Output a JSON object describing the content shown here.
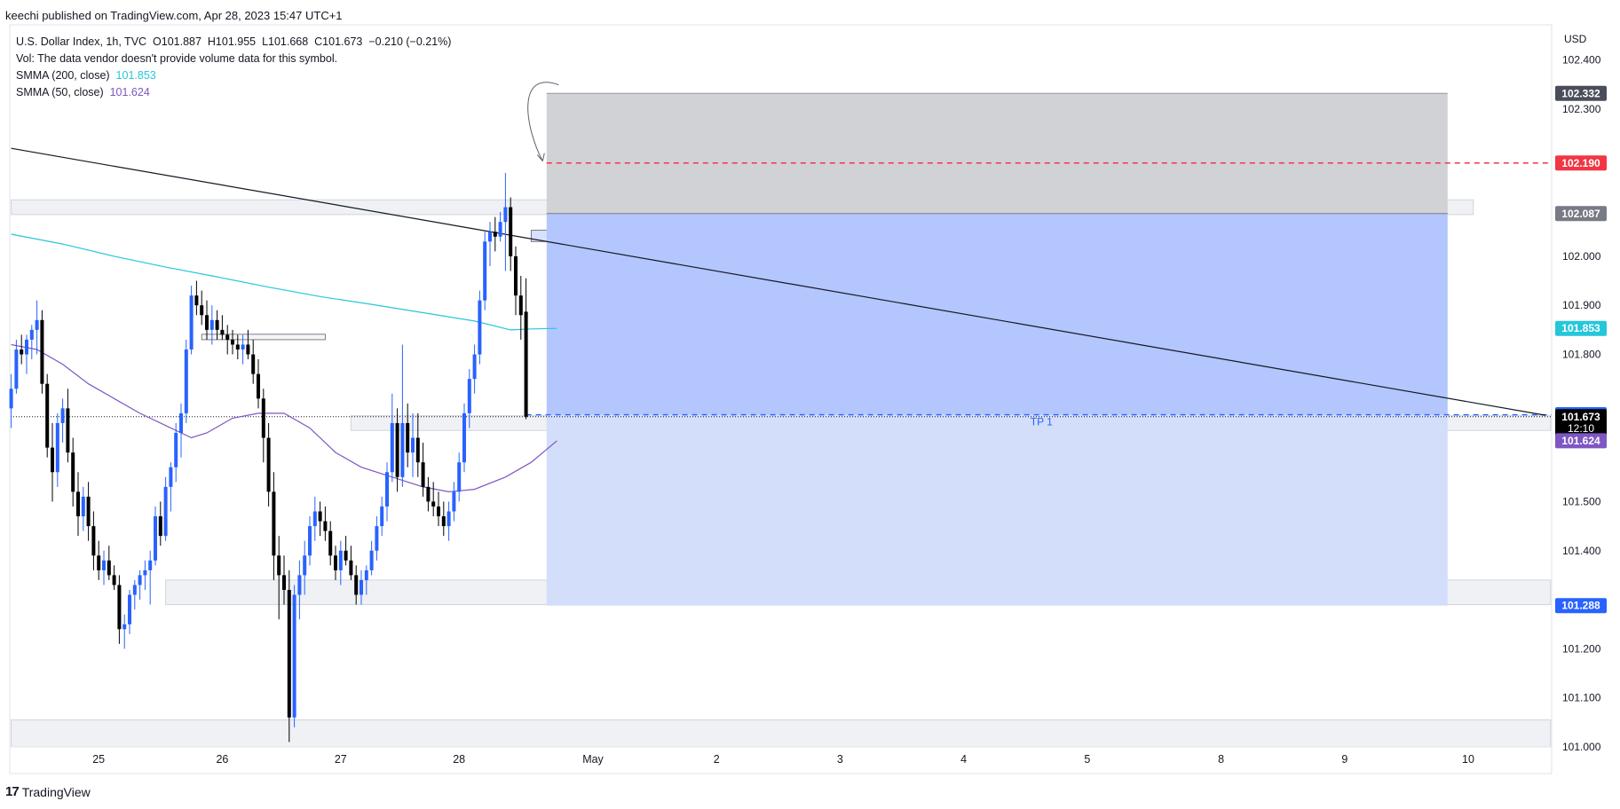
{
  "header": {
    "published": "keechi published on TradingView.com, Apr 28, 2023 15:47 UTC+1"
  },
  "legend": {
    "symbol": "U.S. Dollar Index, 1h, TVC",
    "open": "O101.887",
    "high": "H101.955",
    "low": "L101.668",
    "close": "C101.673",
    "change": "−0.210 (−0.21%)",
    "vol": "Vol: The data vendor doesn't provide volume data for this symbol.",
    "smma200_label": "SMMA (200, close)",
    "smma200_value": "101.853",
    "smma50_label": "SMMA (50, close)",
    "smma50_value": "101.624"
  },
  "footer": {
    "brand": "TradingView",
    "logo": "17"
  },
  "colors": {
    "up": "#2962ff",
    "down": "#000000",
    "smma200": "#26c6da",
    "smma50": "#7e57c2",
    "stop": "#f23645",
    "target_fill": "#b3c6fd",
    "risk_fill": "#cfd0d4"
  },
  "chart_data": {
    "type": "candlestick",
    "currency": "USD",
    "ylim": [
      101.0,
      102.45
    ],
    "y_ticks": [
      "102.400",
      "102.300",
      "102.000",
      "101.900",
      "101.800",
      "101.500",
      "101.400",
      "101.200",
      "101.100",
      "101.000"
    ],
    "x_labels": [
      "25",
      "26",
      "27",
      "28",
      "May",
      "2",
      "3",
      "4",
      "5",
      "8",
      "9",
      "10"
    ],
    "x_label_index": [
      17,
      41,
      64,
      87,
      113,
      137,
      161,
      185,
      209,
      235,
      259,
      283
    ],
    "price_tags": [
      {
        "label": "102.332",
        "value": 102.332,
        "color": "#4a4e5a"
      },
      {
        "label": "102.190",
        "value": 102.19,
        "color": "#f23645"
      },
      {
        "label": "102.087",
        "value": 102.087,
        "color": "#787b86"
      },
      {
        "label": "101.853",
        "value": 101.853,
        "color": "#26c6da"
      },
      {
        "label": "101.677",
        "value": 101.677,
        "color": "#2962ff"
      },
      {
        "label": "101.673",
        "value": 101.673,
        "color": "#000000",
        "sub": "12:10"
      },
      {
        "label": "101.624",
        "value": 101.624,
        "color": "#7e57c2"
      },
      {
        "label": "101.288",
        "value": 101.288,
        "color": "#2962ff"
      }
    ],
    "position": {
      "entry": 102.087,
      "stop": 102.332,
      "target": 101.288,
      "tp_level": 101.677,
      "start_index": 104,
      "end_index": 279,
      "tp_label": "TP 1"
    },
    "stop_line": 102.19,
    "trendline": [
      {
        "i": 0,
        "v": 102.22
      },
      {
        "i": 298,
        "v": 101.676
      }
    ],
    "zones": [
      {
        "from_index": 0,
        "to_index": 284,
        "low": 102.085,
        "high": 102.115
      },
      {
        "from_index": 66,
        "to_index": 299,
        "low": 101.645,
        "high": 101.675
      },
      {
        "from_index": 30,
        "to_index": 299,
        "low": 101.29,
        "high": 101.34
      },
      {
        "from_index": 0,
        "to_index": 299,
        "low": 101.0,
        "high": 101.055
      }
    ],
    "small_boxes": [
      {
        "from_index": 37,
        "to_index": 61,
        "low": 101.83,
        "high": 101.841
      },
      {
        "from_index": 101,
        "to_index": 119,
        "low": 102.03,
        "high": 102.053
      }
    ],
    "smma200": [
      {
        "i": 0,
        "v": 102.045
      },
      {
        "i": 10,
        "v": 102.025
      },
      {
        "i": 20,
        "v": 102.0
      },
      {
        "i": 30,
        "v": 101.978
      },
      {
        "i": 40,
        "v": 101.958
      },
      {
        "i": 50,
        "v": 101.937
      },
      {
        "i": 60,
        "v": 101.918
      },
      {
        "i": 70,
        "v": 101.902
      },
      {
        "i": 80,
        "v": 101.885
      },
      {
        "i": 90,
        "v": 101.868
      },
      {
        "i": 97,
        "v": 101.85
      },
      {
        "i": 101,
        "v": 101.852
      },
      {
        "i": 106,
        "v": 101.853
      }
    ],
    "smma50": [
      {
        "i": 0,
        "v": 101.82
      },
      {
        "i": 5,
        "v": 101.81
      },
      {
        "i": 10,
        "v": 101.78
      },
      {
        "i": 15,
        "v": 101.74
      },
      {
        "i": 20,
        "v": 101.71
      },
      {
        "i": 25,
        "v": 101.68
      },
      {
        "i": 30,
        "v": 101.655
      },
      {
        "i": 35,
        "v": 101.63
      },
      {
        "i": 38,
        "v": 101.64
      },
      {
        "i": 43,
        "v": 101.67
      },
      {
        "i": 48,
        "v": 101.68
      },
      {
        "i": 53,
        "v": 101.68
      },
      {
        "i": 58,
        "v": 101.65
      },
      {
        "i": 63,
        "v": 101.6
      },
      {
        "i": 68,
        "v": 101.57
      },
      {
        "i": 74,
        "v": 101.55
      },
      {
        "i": 80,
        "v": 101.53
      },
      {
        "i": 85,
        "v": 101.52
      },
      {
        "i": 90,
        "v": 101.525
      },
      {
        "i": 96,
        "v": 101.55
      },
      {
        "i": 101,
        "v": 101.58
      },
      {
        "i": 106,
        "v": 101.624
      }
    ],
    "ohlc": [
      [
        101.69,
        101.76,
        101.65,
        101.73
      ],
      [
        101.73,
        101.83,
        101.72,
        101.81
      ],
      [
        101.81,
        101.84,
        101.78,
        101.8
      ],
      [
        101.8,
        101.84,
        101.76,
        101.83
      ],
      [
        101.83,
        101.86,
        101.79,
        101.85
      ],
      [
        101.85,
        101.91,
        101.8,
        101.87
      ],
      [
        101.87,
        101.89,
        101.72,
        101.74
      ],
      [
        101.74,
        101.76,
        101.59,
        101.61
      ],
      [
        101.61,
        101.66,
        101.5,
        101.56
      ],
      [
        101.56,
        101.68,
        101.53,
        101.66
      ],
      [
        101.66,
        101.71,
        101.62,
        101.69
      ],
      [
        101.69,
        101.73,
        101.58,
        101.6
      ],
      [
        101.6,
        101.63,
        101.49,
        101.52
      ],
      [
        101.52,
        101.56,
        101.43,
        101.47
      ],
      [
        101.47,
        101.53,
        101.44,
        101.51
      ],
      [
        101.51,
        101.54,
        101.42,
        101.45
      ],
      [
        101.45,
        101.48,
        101.36,
        101.39
      ],
      [
        101.39,
        101.42,
        101.34,
        101.36
      ],
      [
        101.36,
        101.4,
        101.33,
        101.38
      ],
      [
        101.38,
        101.41,
        101.34,
        101.35
      ],
      [
        101.35,
        101.37,
        101.32,
        101.33
      ],
      [
        101.33,
        101.35,
        101.21,
        101.24
      ],
      [
        101.24,
        101.27,
        101.2,
        101.25
      ],
      [
        101.25,
        101.32,
        101.23,
        101.31
      ],
      [
        101.31,
        101.34,
        101.28,
        101.33
      ],
      [
        101.33,
        101.36,
        101.3,
        101.35
      ],
      [
        101.35,
        101.38,
        101.32,
        101.36
      ],
      [
        101.36,
        101.4,
        101.29,
        101.38
      ],
      [
        101.38,
        101.49,
        101.37,
        101.47
      ],
      [
        101.47,
        101.5,
        101.41,
        101.43
      ],
      [
        101.43,
        101.55,
        101.42,
        101.53
      ],
      [
        101.53,
        101.58,
        101.48,
        101.57
      ],
      [
        101.57,
        101.66,
        101.54,
        101.64
      ],
      [
        101.64,
        101.7,
        101.59,
        101.68
      ],
      [
        101.68,
        101.83,
        101.66,
        101.81
      ],
      [
        101.81,
        101.94,
        101.8,
        101.92
      ],
      [
        101.92,
        101.95,
        101.88,
        101.9
      ],
      [
        101.9,
        101.93,
        101.86,
        101.88
      ],
      [
        101.88,
        101.91,
        101.83,
        101.85
      ],
      [
        101.85,
        101.9,
        101.82,
        101.87
      ],
      [
        101.87,
        101.89,
        101.83,
        101.85
      ],
      [
        101.85,
        101.88,
        101.83,
        101.84
      ],
      [
        101.84,
        101.86,
        101.8,
        101.83
      ],
      [
        101.83,
        101.85,
        101.8,
        101.82
      ],
      [
        101.82,
        101.84,
        101.79,
        101.81
      ],
      [
        101.81,
        101.84,
        101.78,
        101.82
      ],
      [
        101.82,
        101.85,
        101.79,
        101.8
      ],
      [
        101.8,
        101.83,
        101.74,
        101.76
      ],
      [
        101.76,
        101.79,
        101.69,
        101.71
      ],
      [
        101.71,
        101.73,
        101.58,
        101.63
      ],
      [
        101.63,
        101.66,
        101.49,
        101.52
      ],
      [
        101.52,
        101.56,
        101.34,
        101.39
      ],
      [
        101.39,
        101.43,
        101.26,
        101.35
      ],
      [
        101.35,
        101.39,
        101.29,
        101.32
      ],
      [
        101.32,
        101.36,
        101.01,
        101.06
      ],
      [
        101.06,
        101.33,
        101.04,
        101.31
      ],
      [
        101.31,
        101.38,
        101.26,
        101.35
      ],
      [
        101.35,
        101.42,
        101.31,
        101.39
      ],
      [
        101.39,
        101.47,
        101.37,
        101.45
      ],
      [
        101.45,
        101.51,
        101.42,
        101.48
      ],
      [
        101.48,
        101.5,
        101.43,
        101.46
      ],
      [
        101.46,
        101.49,
        101.42,
        101.44
      ],
      [
        101.44,
        101.46,
        101.37,
        101.39
      ],
      [
        101.39,
        101.41,
        101.34,
        101.36
      ],
      [
        101.36,
        101.42,
        101.33,
        101.4
      ],
      [
        101.4,
        101.43,
        101.37,
        101.38
      ],
      [
        101.38,
        101.41,
        101.34,
        101.35
      ],
      [
        101.35,
        101.37,
        101.29,
        101.31
      ],
      [
        101.31,
        101.36,
        101.29,
        101.34
      ],
      [
        101.34,
        101.37,
        101.31,
        101.36
      ],
      [
        101.36,
        101.42,
        101.35,
        101.4
      ],
      [
        101.4,
        101.47,
        101.38,
        101.45
      ],
      [
        101.45,
        101.51,
        101.43,
        101.49
      ],
      [
        101.49,
        101.58,
        101.46,
        101.56
      ],
      [
        101.56,
        101.72,
        101.54,
        101.66
      ],
      [
        101.66,
        101.69,
        101.52,
        101.55
      ],
      [
        101.55,
        101.82,
        101.53,
        101.66
      ],
      [
        101.66,
        101.7,
        101.57,
        101.6
      ],
      [
        101.6,
        101.68,
        101.55,
        101.63
      ],
      [
        101.63,
        101.68,
        101.55,
        101.58
      ],
      [
        101.58,
        101.62,
        101.51,
        101.53
      ],
      [
        101.53,
        101.55,
        101.48,
        101.5
      ],
      [
        101.5,
        101.54,
        101.47,
        101.49
      ],
      [
        101.49,
        101.52,
        101.45,
        101.47
      ],
      [
        101.47,
        101.5,
        101.43,
        101.45
      ],
      [
        101.45,
        101.5,
        101.42,
        101.48
      ],
      [
        101.48,
        101.54,
        101.46,
        101.52
      ],
      [
        101.52,
        101.6,
        101.5,
        101.58
      ],
      [
        101.58,
        101.7,
        101.56,
        101.68
      ],
      [
        101.68,
        101.77,
        101.65,
        101.75
      ],
      [
        101.75,
        101.82,
        101.72,
        101.8
      ],
      [
        101.8,
        101.93,
        101.78,
        101.91
      ],
      [
        101.91,
        102.05,
        101.89,
        102.03
      ],
      [
        102.03,
        102.07,
        101.98,
        102.05
      ],
      [
        102.05,
        102.08,
        102.01,
        102.04
      ],
      [
        102.04,
        102.09,
        102.03,
        102.07
      ],
      [
        102.07,
        102.17,
        101.97,
        102.1
      ],
      [
        102.1,
        102.12,
        101.97,
        102.0
      ],
      [
        102.0,
        102.02,
        101.88,
        101.92
      ],
      [
        101.92,
        101.96,
        101.83,
        101.88
      ],
      [
        101.887,
        101.955,
        101.668,
        101.673
      ]
    ]
  }
}
